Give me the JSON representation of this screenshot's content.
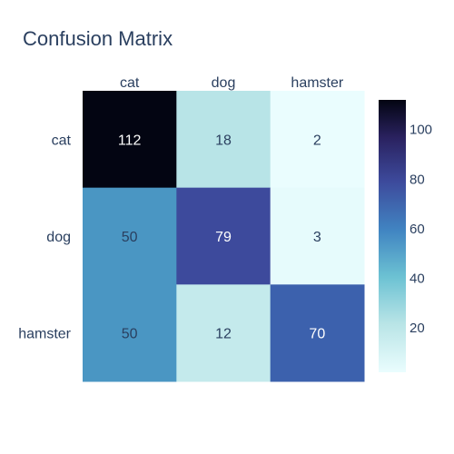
{
  "chart_data": {
    "type": "heatmap",
    "title": "Confusion Matrix",
    "x_categories": [
      "cat",
      "dog",
      "hamster"
    ],
    "y_categories": [
      "cat",
      "dog",
      "hamster"
    ],
    "values": [
      [
        112,
        18,
        2
      ],
      [
        50,
        79,
        3
      ],
      [
        50,
        12,
        70
      ]
    ],
    "x_axis_side": "top",
    "colorscale": "ice (reversed)",
    "colorbar": {
      "range": [
        2,
        112
      ],
      "ticks": [
        20,
        40,
        60,
        80,
        100
      ]
    }
  }
}
